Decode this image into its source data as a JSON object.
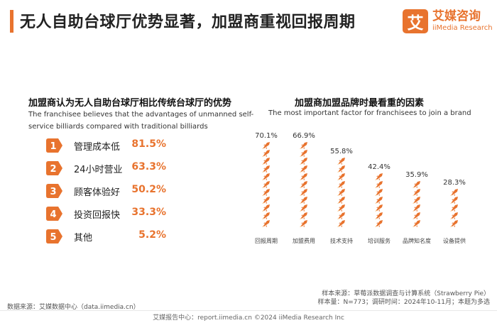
{
  "header": {
    "title": "无人自助台球厅优势显著，加盟商重视回报周期",
    "logo_glyph": "艾",
    "logo_cn": "艾媒咨询",
    "logo_en": "iiMedia Research",
    "accent_color": "#e8732e"
  },
  "left_panel": {
    "title": "加盟商认为无人自助台球厅相比传统台球厅的优势",
    "subtitle_line1": "The franchisee believes that the advantages of unmanned self-",
    "subtitle_line2": "service billiards compared with traditional billiards",
    "items": [
      {
        "num": "1",
        "label": "管理成本低",
        "value": "81.5%"
      },
      {
        "num": "2",
        "label": "24小时营业",
        "value": "63.3%"
      },
      {
        "num": "3",
        "label": "顾客体验好",
        "value": "50.2%"
      },
      {
        "num": "4",
        "label": "投资回报快",
        "value": "33.3%"
      },
      {
        "num": "5",
        "label": "其他",
        "value": "5.2%"
      }
    ]
  },
  "chart_data": {
    "type": "bar",
    "title": "加盟商加盟品牌时最看重的因素",
    "subtitle": "The most important factor for franchisees to join a brand",
    "categories": [
      "回报周期",
      "加盟费用",
      "技术支持",
      "培训服务",
      "品牌知名度",
      "设备提供"
    ],
    "values": [
      70.1,
      66.9,
      55.8,
      42.4,
      35.9,
      28.3
    ],
    "value_labels": [
      "70.1%",
      "66.9%",
      "55.8%",
      "42.4%",
      "35.9%",
      "28.3%"
    ],
    "unit": "%",
    "ylim": [
      0,
      75
    ],
    "bar_style": "stacked-icons",
    "icon": "rocket-icon"
  },
  "notes": {
    "source": "数据来源：艾媒数据中心（data.iimedia.cn）",
    "sample_source": "样本来源：草莓派数据调查与计算系统（Strawberry Pie）",
    "sample_info": "样本量：N=773；调研时间：2024年10-11月；本题为多选"
  },
  "footer": {
    "text": "艾媒报告中心：report.iimedia.cn   ©2024  iiMedia Research  Inc"
  }
}
